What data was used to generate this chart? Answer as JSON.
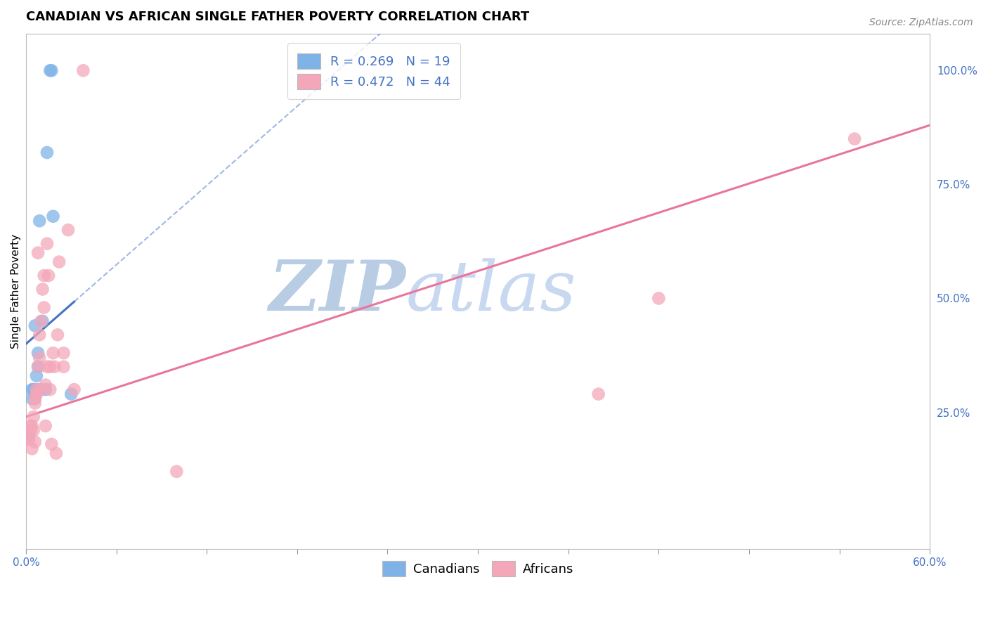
{
  "title": "CANADIAN VS AFRICAN SINGLE FATHER POVERTY CORRELATION CHART",
  "source": "Source: ZipAtlas.com",
  "ylabel": "Single Father Poverty",
  "xlim": [
    0.0,
    0.6
  ],
  "ylim": [
    -0.05,
    1.08
  ],
  "xticks": [
    0.0,
    0.06,
    0.12,
    0.18,
    0.24,
    0.3,
    0.36,
    0.42,
    0.48,
    0.54,
    0.6
  ],
  "yticks_right": [
    0.25,
    0.5,
    0.75,
    1.0
  ],
  "yticklabels_right": [
    "25.0%",
    "50.0%",
    "75.0%",
    "100.0%"
  ],
  "canadian_R": 0.269,
  "canadian_N": 19,
  "african_R": 0.472,
  "african_N": 44,
  "canadian_color": "#7fb3e8",
  "african_color": "#f4a7b9",
  "canadian_line_color": "#4472c4",
  "african_line_color": "#e8769a",
  "background_color": "#ffffff",
  "watermark_zip": "ZIP",
  "watermark_atlas": "atlas",
  "watermark_color_zip": "#b8cce4",
  "watermark_color_atlas": "#c8d8f0",
  "grid_color": "#cccccc",
  "canadians_x": [
    0.002,
    0.004,
    0.004,
    0.005,
    0.006,
    0.006,
    0.007,
    0.007,
    0.008,
    0.008,
    0.009,
    0.01,
    0.011,
    0.013,
    0.014,
    0.016,
    0.017,
    0.018,
    0.03
  ],
  "canadians_y": [
    0.2,
    0.28,
    0.3,
    0.3,
    0.28,
    0.44,
    0.33,
    0.3,
    0.35,
    0.38,
    0.67,
    0.3,
    0.45,
    0.3,
    0.82,
    1.0,
    1.0,
    0.68,
    0.29
  ],
  "africans_x": [
    0.001,
    0.002,
    0.003,
    0.003,
    0.004,
    0.004,
    0.005,
    0.005,
    0.006,
    0.006,
    0.006,
    0.007,
    0.007,
    0.008,
    0.008,
    0.009,
    0.009,
    0.01,
    0.01,
    0.011,
    0.012,
    0.012,
    0.013,
    0.013,
    0.014,
    0.014,
    0.015,
    0.016,
    0.016,
    0.017,
    0.018,
    0.019,
    0.02,
    0.021,
    0.022,
    0.025,
    0.025,
    0.028,
    0.032,
    0.038,
    0.1,
    0.38,
    0.55,
    0.42
  ],
  "africans_y": [
    0.195,
    0.19,
    0.22,
    0.21,
    0.22,
    0.17,
    0.24,
    0.21,
    0.185,
    0.27,
    0.28,
    0.29,
    0.3,
    0.35,
    0.6,
    0.42,
    0.37,
    0.45,
    0.3,
    0.52,
    0.55,
    0.48,
    0.31,
    0.22,
    0.35,
    0.62,
    0.55,
    0.35,
    0.3,
    0.18,
    0.38,
    0.35,
    0.16,
    0.42,
    0.58,
    0.38,
    0.35,
    0.65,
    0.3,
    1.0,
    0.12,
    0.29,
    0.85,
    0.5
  ],
  "blue_line_x0": 0.0,
  "blue_line_y0": 0.4,
  "blue_line_x1": 0.145,
  "blue_line_y1": 0.82,
  "blue_line_solid_end": 0.032,
  "blue_line_dashed_end": 0.6,
  "pink_line_x0": 0.0,
  "pink_line_y0": 0.24,
  "pink_line_x1": 0.6,
  "pink_line_y1": 0.88,
  "title_fontsize": 13,
  "source_fontsize": 10,
  "axis_label_fontsize": 11,
  "tick_fontsize": 11,
  "legend_fontsize": 13
}
